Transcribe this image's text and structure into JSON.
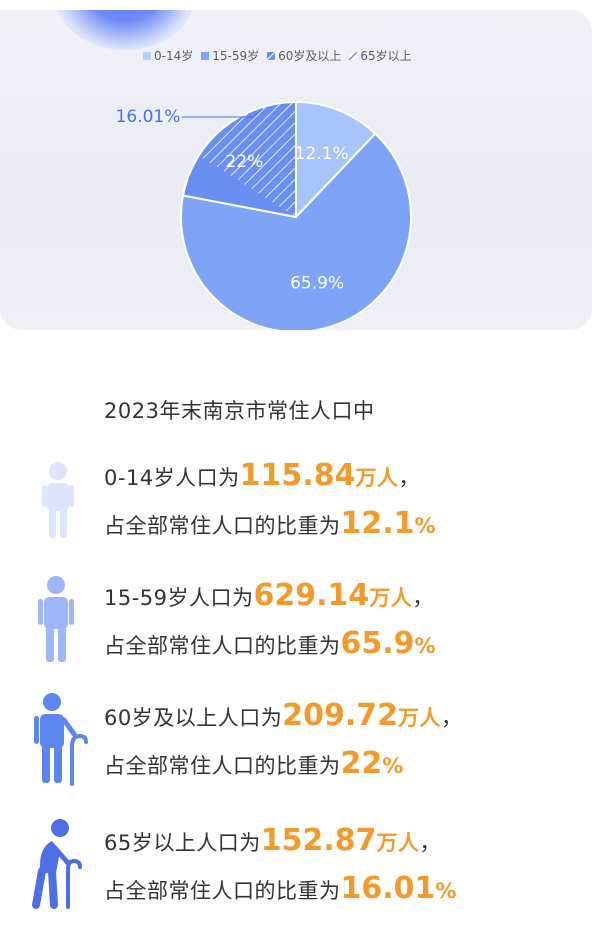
{
  "chart_data": {
    "type": "pie",
    "legend": [
      "0-14岁",
      "15-59岁",
      "60岁及以上",
      "65岁以上"
    ],
    "slices": [
      {
        "name": "0-14岁",
        "value": 12.1,
        "label": "12.1%",
        "color": "#a7c4fb"
      },
      {
        "name": "15-59岁",
        "value": 65.9,
        "label": "65.9%",
        "color": "#7ea4f8"
      },
      {
        "name": "60岁及以上",
        "value": 22,
        "label": "22%",
        "color": "#6a8ff3"
      },
      {
        "name": "65岁以上",
        "value": 16.01,
        "label": "16.01%",
        "color": "#5b7fe9",
        "nested_in": "60岁及以上"
      }
    ],
    "legend_placement": "top"
  },
  "colors": {
    "accent_orange": "#f39a2b",
    "text_dark": "#333333"
  },
  "heading": "2023年末南京市常住人口中",
  "stats": [
    {
      "icon": "child-icon",
      "prefix": "0-14岁人口为",
      "number": "115.84",
      "unit": "万人",
      "punct": "，",
      "line2_prefix": "占全部常住人口的比重为",
      "pct": "12.1",
      "pct_unit": "%"
    },
    {
      "icon": "adult-icon",
      "prefix": "15-59岁人口为",
      "number": "629.14",
      "unit": "万人",
      "punct": "，",
      "line2_prefix": "占全部常住人口的比重为",
      "pct": "65.9",
      "pct_unit": "%"
    },
    {
      "icon": "elder-with-cane-icon",
      "prefix": "60岁及以上人口为",
      "number": "209.72",
      "unit": "万人",
      "punct": "，",
      "line2_prefix": "占全部常住人口的比重为",
      "pct": "22",
      "pct_unit": "%"
    },
    {
      "icon": "senior-bent-with-cane-icon",
      "prefix": "65岁以上人口为",
      "number": "152.87",
      "unit": "万人",
      "punct": "，",
      "line2_prefix": "占全部常住人口的比重为",
      "pct": "16.01",
      "pct_unit": "%"
    }
  ]
}
